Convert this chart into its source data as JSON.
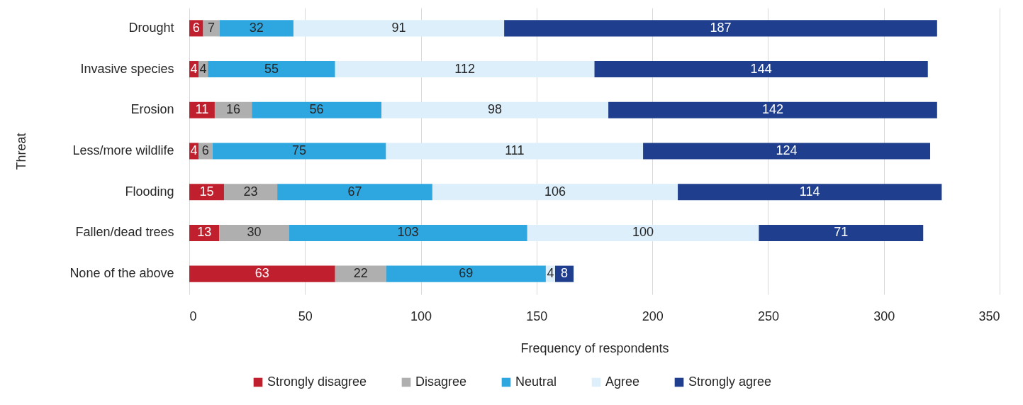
{
  "chart_data": {
    "type": "bar",
    "orientation": "horizontal",
    "stacked": true,
    "xlabel": "Frequency of respondents",
    "ylabel": "Threat",
    "categories": [
      "Drought",
      "Invasive species",
      "Erosion",
      "Less/more wildlife",
      "Flooding",
      "Fallen/dead trees",
      "None of the above"
    ],
    "series": [
      {
        "name": "Strongly disagree",
        "color": "#c0202e",
        "values": [
          6,
          4,
          11,
          4,
          15,
          13,
          63
        ]
      },
      {
        "name": "Disagree",
        "color": "#afafaf",
        "values": [
          7,
          4,
          16,
          6,
          23,
          30,
          22
        ]
      },
      {
        "name": "Neutral",
        "color": "#2ea7e0",
        "values": [
          32,
          55,
          56,
          75,
          67,
          103,
          69
        ]
      },
      {
        "name": "Agree",
        "color": "#ddeffb",
        "values": [
          91,
          112,
          98,
          111,
          106,
          100,
          4
        ]
      },
      {
        "name": "Strongly agree",
        "color": "#1f3f8e",
        "values": [
          187,
          144,
          142,
          124,
          114,
          71,
          8
        ]
      }
    ],
    "xlim": [
      0,
      350
    ],
    "xticks": [
      0,
      50,
      100,
      150,
      200,
      250,
      300,
      350
    ],
    "grid": "x",
    "legend": "bottom",
    "data_labels": true
  }
}
